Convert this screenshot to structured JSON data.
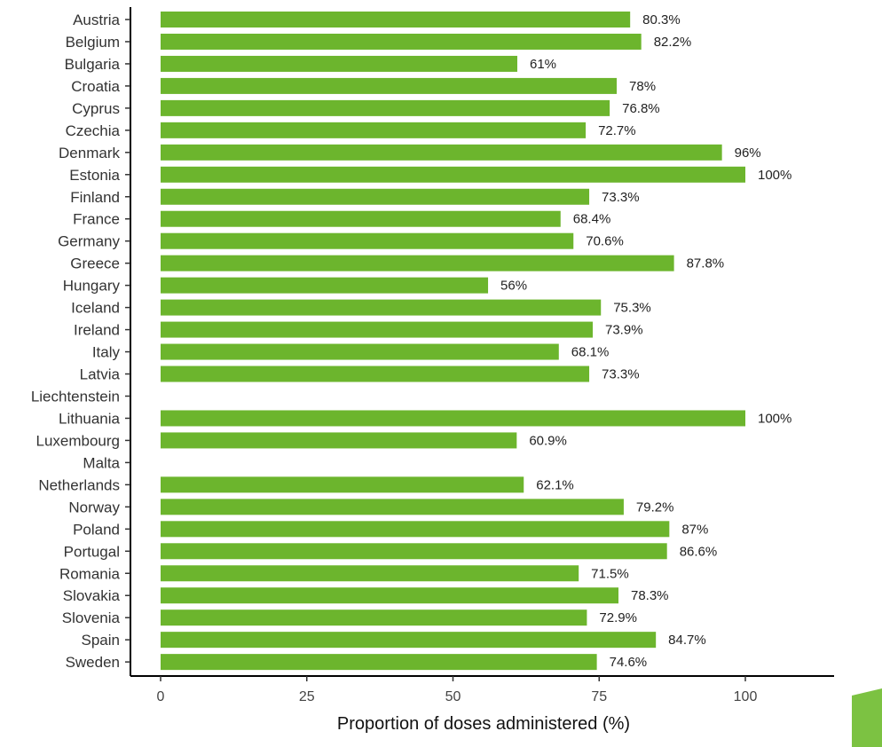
{
  "chart_data": {
    "type": "bar",
    "orientation": "horizontal",
    "categories": [
      "Austria",
      "Belgium",
      "Bulgaria",
      "Croatia",
      "Cyprus",
      "Czechia",
      "Denmark",
      "Estonia",
      "Finland",
      "France",
      "Germany",
      "Greece",
      "Hungary",
      "Iceland",
      "Ireland",
      "Italy",
      "Latvia",
      "Liechtenstein",
      "Lithuania",
      "Luxembourg",
      "Malta",
      "Netherlands",
      "Norway",
      "Poland",
      "Portugal",
      "Romania",
      "Slovakia",
      "Slovenia",
      "Spain",
      "Sweden"
    ],
    "values": [
      80.3,
      82.2,
      61,
      78,
      76.8,
      72.7,
      96,
      100,
      73.3,
      68.4,
      70.6,
      87.8,
      56,
      75.3,
      73.9,
      68.1,
      73.3,
      null,
      100,
      60.9,
      null,
      62.1,
      79.2,
      87,
      86.6,
      71.5,
      78.3,
      72.9,
      84.7,
      74.6
    ],
    "value_labels": [
      "80.3%",
      "82.2%",
      "61%",
      "78%",
      "76.8%",
      "72.7%",
      "96%",
      "100%",
      "73.3%",
      "68.4%",
      "70.6%",
      "87.8%",
      "56%",
      "75.3%",
      "73.9%",
      "68.1%",
      "73.3%",
      "",
      "100%",
      "60.9%",
      "",
      "62.1%",
      "79.2%",
      "87%",
      "86.6%",
      "71.5%",
      "78.3%",
      "72.9%",
      "84.7%",
      "74.6%"
    ],
    "xlabel": "Proportion of doses administered (%)",
    "ylabel": "",
    "xlim": [
      0,
      113
    ],
    "xticks": [
      0,
      25,
      50,
      75,
      100
    ],
    "xtick_labels": [
      "0",
      "25",
      "50",
      "75",
      "100"
    ],
    "grid": false,
    "legend": "none",
    "bar_color": "#6cb52d"
  },
  "colors": {
    "bar": "#6cb52d",
    "corner_accent": "#7cc242"
  }
}
